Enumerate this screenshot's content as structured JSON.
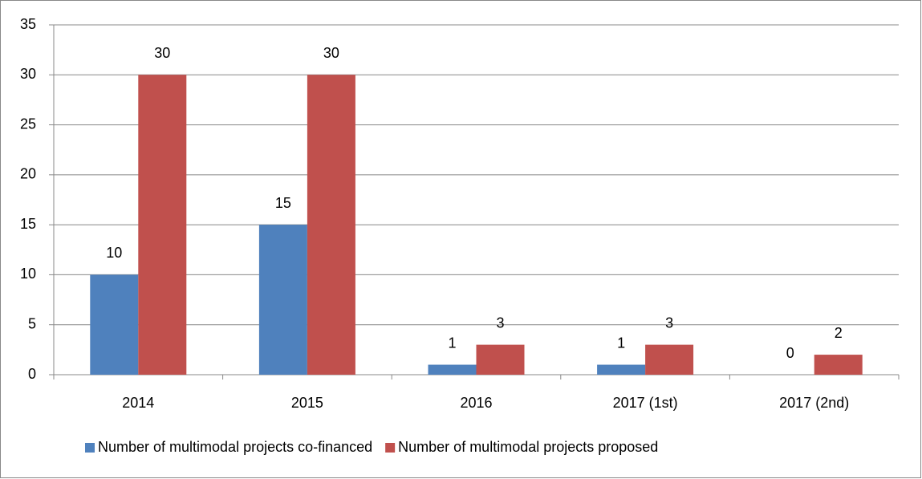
{
  "chart_data": {
    "type": "bar",
    "categories": [
      "2014",
      "2015",
      "2016",
      "2017 (1st)",
      "2017 (2nd)"
    ],
    "series": [
      {
        "name": "Number of multimodal projects co-financed",
        "color": "#4f81bd",
        "values": [
          10,
          15,
          1,
          1,
          0
        ]
      },
      {
        "name": "Number of multimodal projects proposed",
        "color": "#c0504d",
        "values": [
          30,
          30,
          3,
          3,
          2
        ]
      }
    ],
    "ylim": [
      0,
      35
    ],
    "yticks": [
      0,
      5,
      10,
      15,
      20,
      25,
      30,
      35
    ],
    "grid": true,
    "legend": "bottom",
    "data_labels": true
  }
}
